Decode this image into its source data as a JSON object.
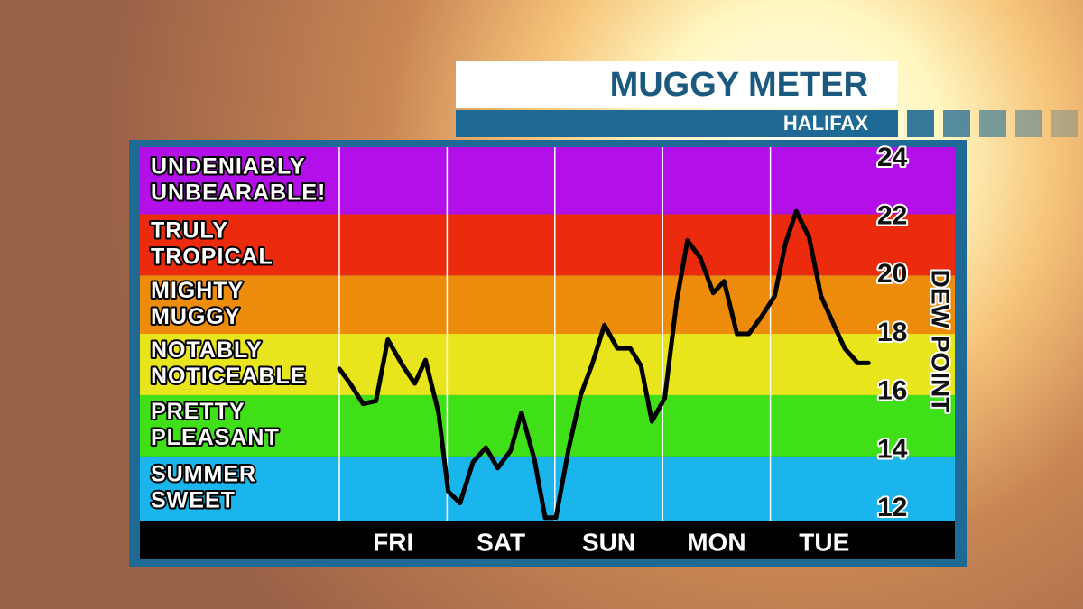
{
  "title": "MUGGY METER",
  "subtitle": "HALIFAX",
  "chart_data": {
    "type": "line",
    "y_axis_label": "DEW POINT",
    "ylim": [
      11.6,
      24.4
    ],
    "yticks": [
      12,
      14,
      16,
      18,
      20,
      22,
      24
    ],
    "xlim": [
      0,
      5
    ],
    "xticks": [
      {
        "value": 0.5,
        "label": "FRI"
      },
      {
        "value": 1.5,
        "label": "SAT"
      },
      {
        "value": 2.5,
        "label": "SUN"
      },
      {
        "value": 3.5,
        "label": "MON"
      },
      {
        "value": 4.5,
        "label": "TUE"
      }
    ],
    "x_dividers": [
      0,
      1,
      2,
      3,
      4
    ],
    "bands": [
      {
        "label": [
          "SUMMER",
          "SWEET"
        ],
        "range": [
          11.6,
          13.8
        ],
        "color": "#19b5ec"
      },
      {
        "label": [
          "PRETTY",
          "PLEASANT"
        ],
        "range": [
          13.8,
          15.9
        ],
        "color": "#3fe018"
      },
      {
        "label": [
          "NOTABLY",
          "NOTICEABLE"
        ],
        "range": [
          15.9,
          18
        ],
        "color": "#e8e51d"
      },
      {
        "label": [
          "MIGHTY",
          "MUGGY"
        ],
        "range": [
          18,
          20
        ],
        "color": "#ed8c0b"
      },
      {
        "label": [
          "TRULY",
          "TROPICAL"
        ],
        "range": [
          20,
          22.1
        ],
        "color": "#ec2a0e"
      },
      {
        "label": [
          "UNDENIABLY",
          "UNBEARABLE!"
        ],
        "range": [
          22.1,
          24.4
        ],
        "color": "#b30fe9"
      }
    ],
    "series": [
      {
        "color": "#000000",
        "x": [
          0,
          0.1,
          0.22,
          0.34,
          0.45,
          0.59,
          0.7,
          0.8,
          0.92,
          1.01,
          1.12,
          1.24,
          1.36,
          1.47,
          1.59,
          1.69,
          1.81,
          1.91,
          2.01,
          2.13,
          2.24,
          2.35,
          2.46,
          2.58,
          2.7,
          2.8,
          2.9,
          3.02,
          3.13,
          3.23,
          3.35,
          3.47,
          3.57,
          3.69,
          3.8,
          3.92,
          4.04,
          4.14,
          4.24,
          4.36,
          4.47,
          4.59,
          4.69,
          4.81,
          4.91
        ],
        "values": [
          16.8,
          16.3,
          15.6,
          15.7,
          17.8,
          16.9,
          16.3,
          17.1,
          15.3,
          12.6,
          12.2,
          13.6,
          14.1,
          13.4,
          14.0,
          15.3,
          13.7,
          11.7,
          11.7,
          14.1,
          15.9,
          17.0,
          18.3,
          17.5,
          17.5,
          16.9,
          15.0,
          15.8,
          19.1,
          21.2,
          20.6,
          19.4,
          19.8,
          18.0,
          18.0,
          18.6,
          19.3,
          21.1,
          22.2,
          21.3,
          19.3,
          18.3,
          17.5,
          17.0,
          17.0
        ]
      }
    ]
  }
}
